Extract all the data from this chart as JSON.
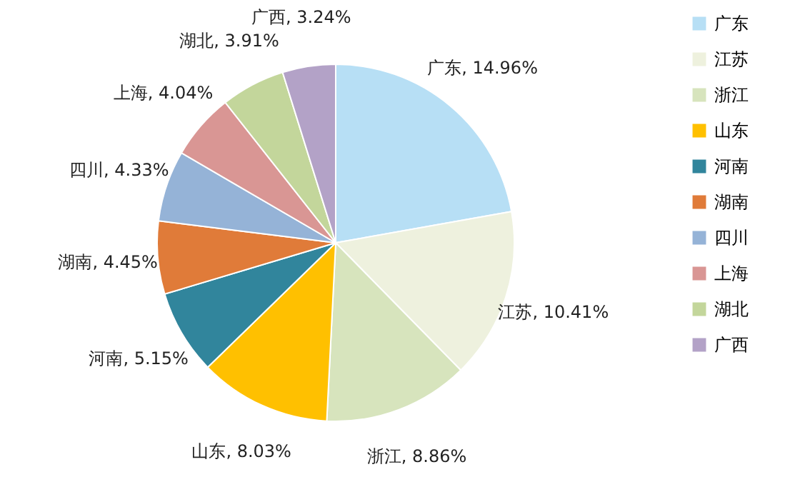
{
  "chart_data": {
    "type": "pie",
    "categories": [
      "广东",
      "江苏",
      "浙江",
      "山东",
      "河南",
      "湖南",
      "四川",
      "上海",
      "湖北",
      "广西"
    ],
    "values": [
      14.96,
      10.41,
      8.86,
      8.03,
      5.15,
      4.45,
      4.33,
      4.04,
      3.91,
      3.24
    ],
    "value_labels": [
      "广东, 14.96%",
      "江苏, 10.41%",
      "浙江, 8.86%",
      "山东, 8.03%",
      "河南, 5.15%",
      "湖南, 4.45%",
      "四川, 4.33%",
      "上海, 4.04%",
      "湖北, 3.91%",
      "广西, 3.24%"
    ],
    "colors": [
      "#b7dff5",
      "#eef1de",
      "#d7e4bd",
      "#ffc000",
      "#31859c",
      "#e07b39",
      "#95b3d7",
      "#d99694",
      "#c3d69b",
      "#b3a2c7"
    ],
    "legend": "right"
  }
}
